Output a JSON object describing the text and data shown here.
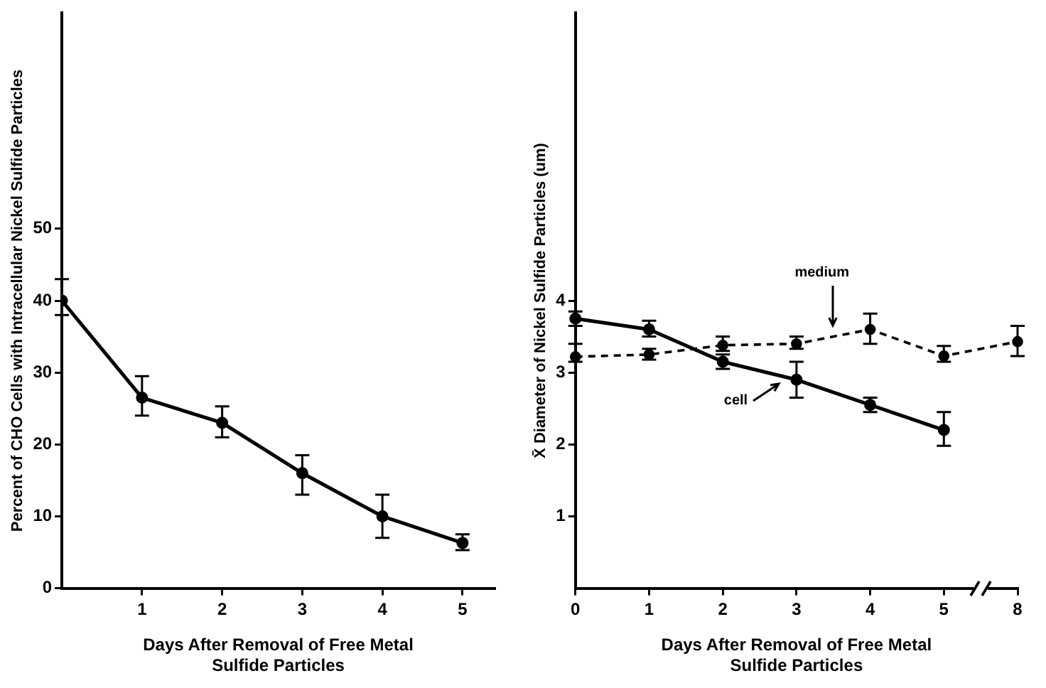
{
  "chart_data": [
    {
      "type": "line",
      "xlabel": "Days After Removal of Free Metal Sulfide Particles",
      "ylabel": "Percent of CHO Cells with Intracellular Nickel Sulfide Particles",
      "x": [
        0,
        1,
        2,
        3,
        4,
        5
      ],
      "xlim": [
        0,
        5.4
      ],
      "xticks": [
        1,
        2,
        3,
        4,
        5
      ],
      "ylim": [
        0,
        80
      ],
      "yticks": [
        0,
        10,
        20,
        30,
        40,
        50
      ],
      "series": [
        {
          "color": "#000000",
          "values": [
            40,
            26.5,
            23,
            16,
            10,
            6.3
          ],
          "errors": [
            [
              38,
              43
            ],
            [
              24,
              29.5
            ],
            [
              21,
              25.3
            ],
            [
              13,
              18.5
            ],
            [
              7,
              13
            ],
            [
              5.3,
              7.5
            ]
          ]
        }
      ],
      "marker": "circle",
      "line_style": "solid",
      "grid": false,
      "legend": false
    },
    {
      "type": "line",
      "xlabel": "Days After Removal of Free Metal Sulfide Particles",
      "ylabel": "X̄ Diameter of Nickel Sulfide Particles (um)",
      "categories": [
        "0",
        "1",
        "2",
        "3",
        "4",
        "5",
        "8"
      ],
      "ylim": [
        0,
        8
      ],
      "yticks": [
        1,
        2,
        3,
        4
      ],
      "series": [
        {
          "name": "cell",
          "color": "#000000",
          "line_style": "solid",
          "values": [
            3.75,
            3.6,
            3.15,
            2.9,
            2.55,
            2.2,
            null
          ],
          "errors": [
            [
              3.65,
              3.85
            ],
            [
              3.5,
              3.72
            ],
            [
              3.05,
              3.25
            ],
            [
              2.65,
              3.15
            ],
            [
              2.45,
              2.65
            ],
            [
              1.98,
              2.45
            ],
            null
          ]
        },
        {
          "name": "medium",
          "color": "#000000",
          "line_style": "dashed",
          "values": [
            3.22,
            3.25,
            3.38,
            3.4,
            3.6,
            3.23,
            3.43
          ],
          "errors": [
            [
              3.15,
              3.4
            ],
            [
              3.18,
              3.33
            ],
            [
              3.3,
              3.5
            ],
            [
              3.33,
              3.5
            ],
            [
              3.4,
              3.82
            ],
            [
              3.15,
              3.37
            ],
            [
              3.23,
              3.65
            ]
          ]
        }
      ],
      "marker": "circle",
      "grid": false
    }
  ]
}
